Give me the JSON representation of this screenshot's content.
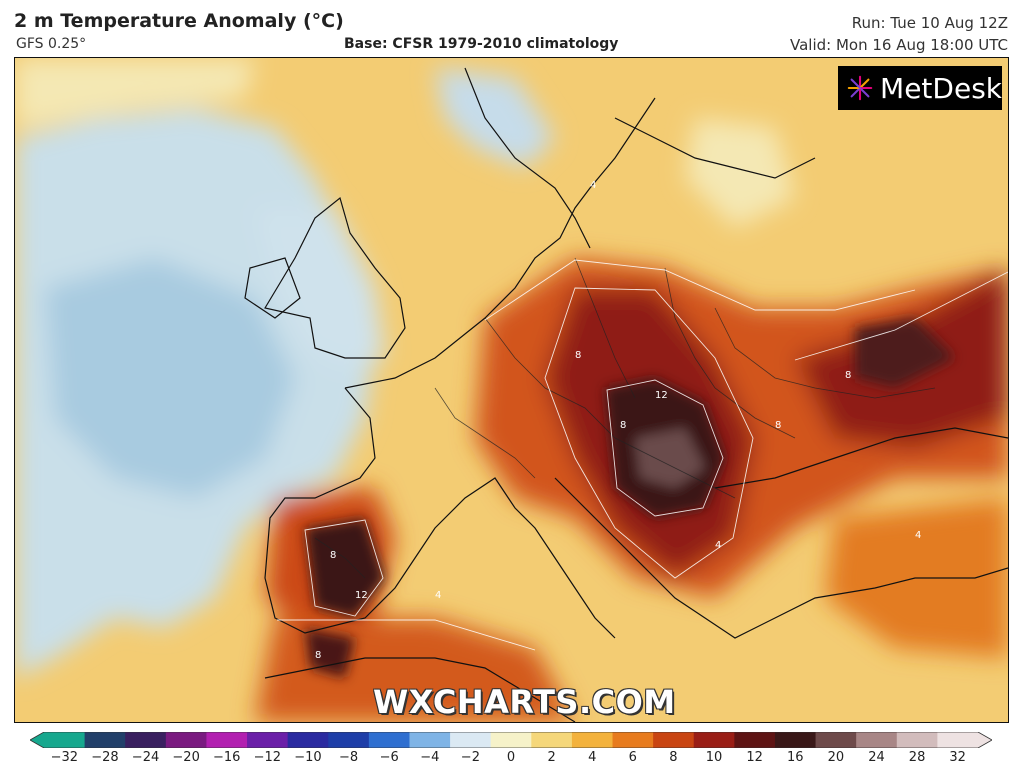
{
  "header": {
    "title": "2 m Temperature Anomaly (°C)",
    "model": "GFS 0.25°",
    "base": "Base: CFSR 1979-2010 climatology",
    "run": "Run: Tue 10 Aug 12Z",
    "valid": "Valid: Mon 16 Aug 18:00 UTC"
  },
  "logo": {
    "text": "MetDesk",
    "icon": "metdesk-burst-icon"
  },
  "watermark": "WXCHARTS.COM",
  "colorbar": {
    "ticks": [
      "−32",
      "−28",
      "−24",
      "−20",
      "−16",
      "−12",
      "−10",
      "−8",
      "−6",
      "−4",
      "−2",
      "0",
      "2",
      "4",
      "6",
      "8",
      "10",
      "12",
      "16",
      "20",
      "24",
      "28",
      "32"
    ],
    "colors": [
      "#17a88e",
      "#22406a",
      "#3a2060",
      "#7a1a80",
      "#b21fb0",
      "#6b1fa8",
      "#2a2aa0",
      "#1e3ea8",
      "#2f6fd0",
      "#7fb4e6",
      "#dbe9f3",
      "#f6f2c9",
      "#f5d77a",
      "#f3b23c",
      "#e77b1e",
      "#c94512",
      "#9a1e16",
      "#5e1414",
      "#3a1818",
      "#6e4a4a",
      "#a88686",
      "#d2bcbc",
      "#eee2e2"
    ]
  },
  "map": {
    "region": "Europe",
    "contour_labels": [
      "4",
      "8",
      "12"
    ]
  }
}
